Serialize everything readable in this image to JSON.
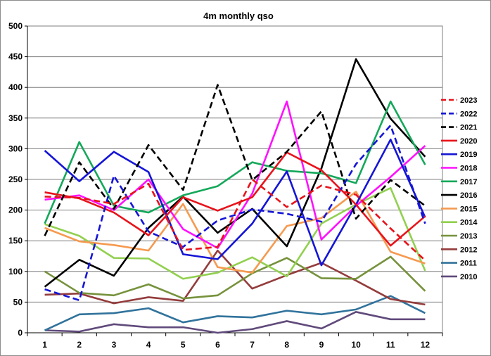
{
  "chart_data": {
    "type": "line",
    "title": "4m monthly qso",
    "xlabel": "",
    "ylabel": "",
    "x": [
      1,
      2,
      3,
      4,
      5,
      6,
      7,
      8,
      9,
      10,
      11,
      12
    ],
    "ylim": [
      0,
      500
    ],
    "yticks": [
      0,
      50,
      100,
      150,
      200,
      250,
      300,
      350,
      400,
      450,
      500
    ],
    "grid": "horizontal",
    "legend": "right",
    "series": [
      {
        "name": "2023",
        "color": "#e8131b",
        "dashed": true,
        "values": [
          222,
          220,
          210,
          243,
          135,
          140,
          250,
          205,
          240,
          225,
          170,
          118
        ]
      },
      {
        "name": "2022",
        "color": "#1515d6",
        "dashed": true,
        "values": [
          71,
          53,
          256,
          165,
          140,
          183,
          201,
          194,
          181,
          275,
          338,
          178
        ]
      },
      {
        "name": "2021",
        "color": "#000000",
        "dashed": true,
        "values": [
          158,
          278,
          202,
          306,
          233,
          404,
          249,
          295,
          361,
          186,
          249,
          207
        ]
      },
      {
        "name": "2020",
        "color": "#e8131b",
        "dashed": false,
        "values": [
          229,
          219,
          196,
          159,
          221,
          199,
          221,
          294,
          265,
          209,
          142,
          190
        ]
      },
      {
        "name": "2019",
        "color": "#1515d6",
        "dashed": false,
        "values": [
          297,
          247,
          295,
          262,
          128,
          120,
          178,
          263,
          110,
          209,
          315,
          188
        ]
      },
      {
        "name": "2018",
        "color": "#ff10ff",
        "dashed": false,
        "values": [
          217,
          224,
          200,
          250,
          169,
          138,
          227,
          377,
          152,
          207,
          254,
          305
        ]
      },
      {
        "name": "2017",
        "color": "#14a85a",
        "dashed": false,
        "values": [
          178,
          311,
          207,
          196,
          224,
          239,
          278,
          264,
          260,
          244,
          377,
          274
        ]
      },
      {
        "name": "2016",
        "color": "#000000",
        "dashed": false,
        "values": [
          75,
          119,
          93,
          171,
          222,
          163,
          202,
          141,
          268,
          446,
          349,
          287
        ]
      },
      {
        "name": "2015",
        "color": "#f59a50",
        "dashed": false,
        "values": [
          171,
          149,
          143,
          134,
          210,
          107,
          98,
          174,
          187,
          230,
          132,
          113
        ]
      },
      {
        "name": "2014",
        "color": "#92d050",
        "dashed": false,
        "values": [
          177,
          158,
          122,
          121,
          88,
          98,
          123,
          92,
          178,
          209,
          236,
          101
        ]
      },
      {
        "name": "2013",
        "color": "#76923c",
        "dashed": false,
        "values": [
          100,
          65,
          61,
          79,
          56,
          61,
          97,
          122,
          89,
          88,
          124,
          68
        ]
      },
      {
        "name": "2012",
        "color": "#943c3c",
        "dashed": false,
        "values": [
          62,
          64,
          48,
          58,
          52,
          134,
          72,
          94,
          114,
          85,
          55,
          46
        ]
      },
      {
        "name": "2011",
        "color": "#31739c",
        "dashed": false,
        "values": [
          4,
          30,
          32,
          40,
          17,
          27,
          25,
          36,
          30,
          38,
          60,
          32
        ]
      },
      {
        "name": "2010",
        "color": "#604a7b",
        "dashed": false,
        "values": [
          4,
          2,
          14,
          9,
          9,
          0,
          6,
          19,
          7,
          34,
          22,
          22
        ]
      }
    ]
  }
}
